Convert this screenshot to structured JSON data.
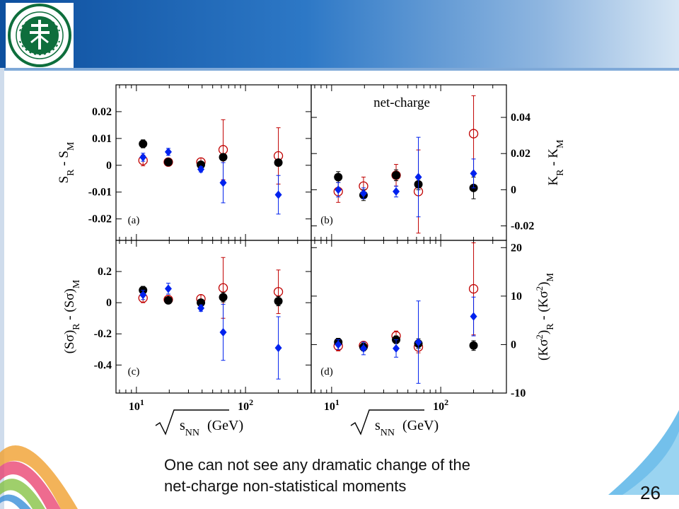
{
  "slide": {
    "caption_line1": "One can not see any dramatic change of the",
    "caption_line2": "net-charge non-statistical moments",
    "page_number": "26",
    "accent_color": "#1a5ea8"
  },
  "chart_data": [
    {
      "type": "scatter",
      "panel": "(a)",
      "xscale": "log",
      "xlim": [
        6.5,
        400
      ],
      "ylim": [
        -0.028,
        0.03
      ],
      "ylabel": "S_R - S_M",
      "yticks": [
        {
          "v": 0.02,
          "l": "0.02"
        },
        {
          "v": 0.01,
          "l": "0.01"
        },
        {
          "v": 0,
          "l": "0"
        },
        {
          "v": -0.01,
          "l": "-0.01"
        },
        {
          "v": -0.02,
          "l": "-0.02"
        }
      ],
      "series": [
        {
          "marker": "filled-circle",
          "color": "#000000",
          "points": [
            {
              "x": 11.5,
              "y": 0.008,
              "err": 0.0015
            },
            {
              "x": 19.6,
              "y": 0.0012,
              "err": 0.0012
            },
            {
              "x": 39,
              "y": 0.0002,
              "err": 0.001
            },
            {
              "x": 62.4,
              "y": 0.003,
              "err": 0.0012
            },
            {
              "x": 200,
              "y": 0.001,
              "err": 0.0012
            }
          ]
        },
        {
          "marker": "open-circle",
          "color": "#c00000",
          "points": [
            {
              "x": 11.5,
              "y": 0.0018,
              "err": 0.002
            },
            {
              "x": 19.6,
              "y": 0.0012,
              "err": 0.0012
            },
            {
              "x": 39,
              "y": 0.0012,
              "err": 0.0015
            },
            {
              "x": 62.4,
              "y": 0.0058,
              "err": 0.0112
            },
            {
              "x": 200,
              "y": 0.0035,
              "err": 0.0105
            }
          ]
        },
        {
          "marker": "diamond",
          "color": "#0022ee",
          "points": [
            {
              "x": 11.5,
              "y": 0.003,
              "err": 0.0015
            },
            {
              "x": 19.6,
              "y": 0.005,
              "err": 0.0013
            },
            {
              "x": 39,
              "y": -0.0015,
              "err": 0.001
            },
            {
              "x": 62.4,
              "y": -0.0065,
              "err": 0.0075
            },
            {
              "x": 200,
              "y": -0.011,
              "err": 0.0072
            }
          ]
        }
      ]
    },
    {
      "type": "scatter",
      "panel": "(b)",
      "title": "net-charge",
      "xscale": "log",
      "xlim": [
        6.5,
        400
      ],
      "ylim": [
        -0.028,
        0.058
      ],
      "ylabel": "K_R - K_M",
      "yticks": [
        {
          "v": 0.04,
          "l": "0.04"
        },
        {
          "v": 0.02,
          "l": "0.02"
        },
        {
          "v": 0,
          "l": "0"
        },
        {
          "v": -0.02,
          "l": "-0.02"
        }
      ],
      "series": [
        {
          "marker": "filled-circle",
          "color": "#000000",
          "points": [
            {
              "x": 11.5,
              "y": 0.007,
              "err": 0.003
            },
            {
              "x": 19.6,
              "y": -0.003,
              "err": 0.003
            },
            {
              "x": 39,
              "y": 0.008,
              "err": 0.003
            },
            {
              "x": 62.4,
              "y": 0.003,
              "err": 0.003
            },
            {
              "x": 200,
              "y": 0.001,
              "err": 0.006
            }
          ]
        },
        {
          "marker": "open-circle",
          "color": "#c00000",
          "points": [
            {
              "x": 11.5,
              "y": -0.001,
              "err": 0.006
            },
            {
              "x": 19.6,
              "y": 0.002,
              "err": 0.005
            },
            {
              "x": 39,
              "y": 0.008,
              "err": 0.006
            },
            {
              "x": 62.4,
              "y": -0.001,
              "err": 0.023
            },
            {
              "x": 200,
              "y": 0.031,
              "err": 0.021
            }
          ]
        },
        {
          "marker": "diamond",
          "color": "#0022ee",
          "points": [
            {
              "x": 11.5,
              "y": 0.0,
              "err": 0.004
            },
            {
              "x": 19.6,
              "y": -0.002,
              "err": 0.003
            },
            {
              "x": 39,
              "y": -0.001,
              "err": 0.003
            },
            {
              "x": 62.4,
              "y": 0.007,
              "err": 0.022
            },
            {
              "x": 200,
              "y": 0.009,
              "err": 0.008
            }
          ]
        }
      ]
    },
    {
      "type": "scatter",
      "panel": "(c)",
      "xscale": "log",
      "xlim": [
        6.5,
        400
      ],
      "ylim": [
        -0.58,
        0.4
      ],
      "ylabel": "(Sσ)_R - (Sσ)_M",
      "yticks": [
        {
          "v": 0.2,
          "l": "0.2"
        },
        {
          "v": 0,
          "l": "0"
        },
        {
          "v": -0.2,
          "l": "-0.2"
        },
        {
          "v": -0.4,
          "l": "-0.4"
        }
      ],
      "xticks": [
        {
          "v": 10,
          "l": "10",
          "sup": "1"
        },
        {
          "v": 100,
          "l": "10",
          "sup": "2"
        }
      ],
      "xlabel": "sNN (GeV)",
      "series": [
        {
          "marker": "filled-circle",
          "color": "#000000",
          "points": [
            {
              "x": 11.5,
              "y": 0.08,
              "err": 0.025
            },
            {
              "x": 19.6,
              "y": 0.015,
              "err": 0.02
            },
            {
              "x": 39,
              "y": 0.0,
              "err": 0.02
            },
            {
              "x": 62.4,
              "y": 0.035,
              "err": 0.03
            },
            {
              "x": 200,
              "y": 0.01,
              "err": 0.03
            }
          ]
        },
        {
          "marker": "open-circle",
          "color": "#c00000",
          "points": [
            {
              "x": 11.5,
              "y": 0.03,
              "err": 0.03
            },
            {
              "x": 19.6,
              "y": 0.02,
              "err": 0.025
            },
            {
              "x": 39,
              "y": 0.025,
              "err": 0.025
            },
            {
              "x": 62.4,
              "y": 0.095,
              "err": 0.195
            },
            {
              "x": 200,
              "y": 0.07,
              "err": 0.14
            }
          ]
        },
        {
          "marker": "diamond",
          "color": "#0022ee",
          "points": [
            {
              "x": 11.5,
              "y": 0.05,
              "err": 0.03
            },
            {
              "x": 19.6,
              "y": 0.09,
              "err": 0.035
            },
            {
              "x": 39,
              "y": -0.035,
              "err": 0.02
            },
            {
              "x": 62.4,
              "y": -0.19,
              "err": 0.18
            },
            {
              "x": 200,
              "y": -0.29,
              "err": 0.2
            }
          ]
        }
      ]
    },
    {
      "type": "scatter",
      "panel": "(d)",
      "xscale": "log",
      "xlim": [
        6.5,
        400
      ],
      "ylim": [
        -10,
        21.5
      ],
      "ylabel": "(Kσ²)_R - (Kσ²)_M",
      "yticks": [
        {
          "v": 20,
          "l": "20"
        },
        {
          "v": 10,
          "l": "10"
        },
        {
          "v": 0,
          "l": "0"
        },
        {
          "v": -10,
          "l": "-10"
        }
      ],
      "xticks": [
        {
          "v": 10,
          "l": "10",
          "sup": "1"
        },
        {
          "v": 100,
          "l": "10",
          "sup": "2"
        }
      ],
      "xlabel": "sNN (GeV)",
      "series": [
        {
          "marker": "filled-circle",
          "color": "#000000",
          "points": [
            {
              "x": 11.5,
              "y": 0.5,
              "err": 0.8
            },
            {
              "x": 19.6,
              "y": -0.5,
              "err": 0.8
            },
            {
              "x": 39,
              "y": 1.0,
              "err": 0.8
            },
            {
              "x": 62.4,
              "y": 0.2,
              "err": 1.0
            },
            {
              "x": 200,
              "y": -0.2,
              "err": 1.0
            }
          ]
        },
        {
          "marker": "open-circle",
          "color": "#c00000",
          "points": [
            {
              "x": 11.5,
              "y": -0.3,
              "err": 1.0
            },
            {
              "x": 19.6,
              "y": -0.2,
              "err": 0.8
            },
            {
              "x": 39,
              "y": 1.8,
              "err": 1.0
            },
            {
              "x": 62.4,
              "y": -0.5,
              "err": 1.2
            },
            {
              "x": 200,
              "y": 11.5,
              "err": 9.5
            }
          ]
        },
        {
          "marker": "diamond",
          "color": "#0022ee",
          "points": [
            {
              "x": 11.5,
              "y": 0.0,
              "err": 1.0
            },
            {
              "x": 19.6,
              "y": -0.8,
              "err": 1.3
            },
            {
              "x": 39,
              "y": -0.8,
              "err": 1.8
            },
            {
              "x": 62.4,
              "y": 0.5,
              "err": 8.5
            },
            {
              "x": 200,
              "y": 5.8,
              "err": 4.0
            }
          ]
        }
      ]
    }
  ]
}
